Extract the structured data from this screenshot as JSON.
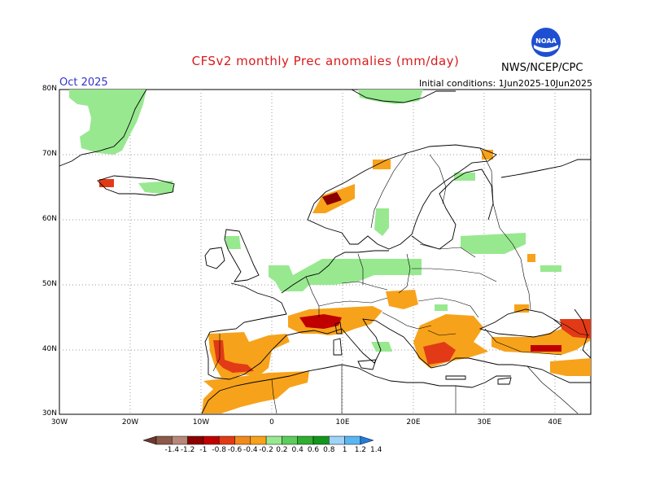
{
  "title": "CFSv2 monthly Prec anomalies (mm/day)",
  "month_label": "Oct 2025",
  "initial_conditions": "Initial conditions: 1Jun2025-10Jun2025",
  "agency": "NWS/NCEP/CPC",
  "logo_text": "NOAA",
  "latitude_labels": [
    "80N",
    "70N",
    "60N",
    "50N",
    "40N",
    "30N"
  ],
  "longitude_labels": [
    "30W",
    "20W",
    "10W",
    "0",
    "10E",
    "20E",
    "30E",
    "40E"
  ],
  "colorbar": {
    "labels": [
      "-1.4",
      "-1.2",
      "-1",
      "-0.8",
      "-0.6",
      "-0.4",
      "-0.2",
      "0.2",
      "0.4",
      "0.6",
      "0.8",
      "1",
      "1.2",
      "1.4"
    ],
    "colors": [
      "#6b3a2c",
      "#8c5a4a",
      "#b7887a",
      "#8b0000",
      "#c00000",
      "#e23a16",
      "#f08a1a",
      "#f7a21b",
      "#98e890",
      "#5ccc5c",
      "#2fae2f",
      "#12961c",
      "#9fd3f7",
      "#5ab5f2",
      "#1f7ee0"
    ]
  },
  "map_data": {
    "region": "Europe",
    "lon_range": [
      -30,
      45
    ],
    "lat_range": [
      30,
      80
    ],
    "anomaly_regions": [
      {
        "name": "Iberia south",
        "anomaly": "dry",
        "level": "-0.2 to -0.6"
      },
      {
        "name": "Northwest Africa",
        "anomaly": "dry",
        "level": "-0.2 to -0.4"
      },
      {
        "name": "Southern France / Alps",
        "anomaly": "dry",
        "level": "-0.2 to -0.8"
      },
      {
        "name": "Greece / Aegean",
        "anomaly": "dry",
        "level": "-0.2 to -0.6"
      },
      {
        "name": "Turkey / Caucasus",
        "anomaly": "dry",
        "level": "-0.2 to -0.8"
      },
      {
        "name": "Norway coast",
        "anomaly": "dry",
        "level": "-0.2 to -0.8"
      },
      {
        "name": "Greenland east",
        "anomaly": "wet",
        "level": "0.2"
      },
      {
        "name": "Central Europe",
        "anomaly": "wet",
        "level": "0.2"
      },
      {
        "name": "Western Russia",
        "anomaly": "wet",
        "level": "0.2"
      }
    ]
  }
}
